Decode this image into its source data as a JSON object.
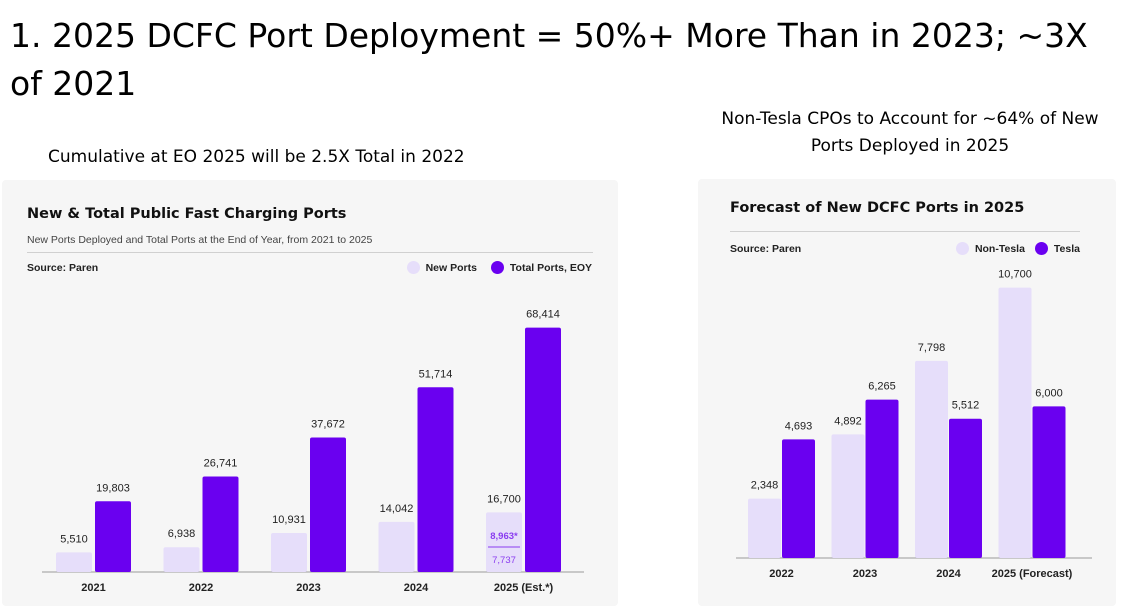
{
  "slide": {
    "title": "1. 2025 DCFC Port Deployment = 50%+ More Than in 2023; ~3X of 2021",
    "left_caption": "Cumulative at EO 2025 will be 2.5X Total in 2022",
    "right_caption": "Non-Tesla CPOs to Account for ~64% of New Ports Deployed in 2025"
  },
  "colors": {
    "light": "#e6defa",
    "dark": "#6a00f0",
    "accent_text": "#8a3cf0"
  },
  "chart_data": [
    {
      "type": "bar",
      "title": "New & Total Public Fast Charging Ports",
      "subtitle": "New Ports Deployed and Total Ports at the End of Year, from 2021 to 2025",
      "source": "Source: Paren",
      "categories": [
        "2021",
        "2022",
        "2023",
        "2024",
        "2025 (Est.*)"
      ],
      "series": [
        {
          "name": "New Ports",
          "values": [
            5510,
            6938,
            10931,
            14042,
            16700
          ]
        },
        {
          "name": "Total Ports, EOY",
          "values": [
            19803,
            26741,
            37672,
            51714,
            68414
          ]
        }
      ],
      "value_labels": {
        "New Ports": [
          "5,510",
          "6,938",
          "10,931",
          "14,042",
          "16,700"
        ],
        "Total Ports, EOY": [
          "19,803",
          "26,741",
          "37,672",
          "51,714",
          "68,414"
        ]
      },
      "annotations": [
        {
          "category": "2025 (Est.*)",
          "upper": "8,963*",
          "lower": "7,737"
        }
      ],
      "ylim": [
        0,
        70000
      ],
      "legend": "top-right"
    },
    {
      "type": "bar",
      "title": "Forecast of New DCFC Ports in 2025",
      "source": "Source: Paren",
      "categories": [
        "2022",
        "2023",
        "2024",
        "2025 (Forecast)"
      ],
      "series": [
        {
          "name": "Non-Tesla",
          "values": [
            2348,
            4892,
            7798,
            10700
          ]
        },
        {
          "name": "Tesla",
          "values": [
            4693,
            6265,
            5512,
            6000
          ]
        }
      ],
      "value_labels": {
        "Non-Tesla": [
          "2,348",
          "4,892",
          "7,798",
          "10,700"
        ],
        "Tesla": [
          "4,693",
          "6,265",
          "5,512",
          "6,000"
        ]
      },
      "ylim": [
        0,
        11000
      ],
      "legend": "top-right"
    }
  ]
}
